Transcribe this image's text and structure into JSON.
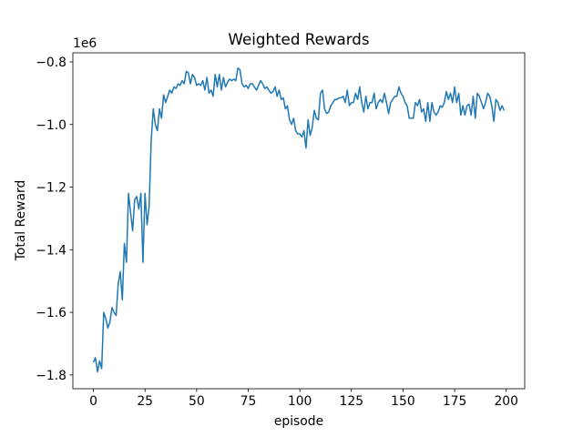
{
  "chart_data": {
    "type": "line",
    "title": "Weighted Rewards",
    "x_label": "episode",
    "y_label": "Total Reward",
    "y_offset_text": "1e6",
    "x": [
      0,
      1,
      2,
      3,
      4,
      5,
      6,
      7,
      8,
      9,
      10,
      11,
      12,
      13,
      14,
      15,
      16,
      17,
      18,
      19,
      20,
      21,
      22,
      23,
      24,
      25,
      26,
      27,
      28,
      29,
      30,
      31,
      32,
      33,
      34,
      35,
      36,
      37,
      38,
      39,
      40,
      41,
      42,
      43,
      44,
      45,
      46,
      47,
      48,
      49,
      50,
      51,
      52,
      53,
      54,
      55,
      56,
      57,
      58,
      59,
      60,
      61,
      62,
      63,
      64,
      65,
      66,
      67,
      68,
      69,
      70,
      71,
      72,
      73,
      74,
      75,
      76,
      77,
      78,
      79,
      80,
      81,
      82,
      83,
      84,
      85,
      86,
      87,
      88,
      89,
      90,
      91,
      92,
      93,
      94,
      95,
      96,
      97,
      98,
      99,
      100,
      101,
      102,
      103,
      104,
      105,
      106,
      107,
      108,
      109,
      110,
      111,
      112,
      113,
      114,
      115,
      116,
      117,
      118,
      119,
      120,
      121,
      122,
      123,
      124,
      125,
      126,
      127,
      128,
      129,
      130,
      131,
      132,
      133,
      134,
      135,
      136,
      137,
      138,
      139,
      140,
      141,
      142,
      143,
      144,
      145,
      146,
      147,
      148,
      149,
      150,
      151,
      152,
      153,
      154,
      155,
      156,
      157,
      158,
      159,
      160,
      161,
      162,
      163,
      164,
      165,
      166,
      167,
      168,
      169,
      170,
      171,
      172,
      173,
      174,
      175,
      176,
      177,
      178,
      179,
      180,
      181,
      182,
      183,
      184,
      185,
      186,
      187,
      188,
      189,
      190,
      191,
      192,
      193,
      194,
      195,
      196,
      197,
      198,
      199
    ],
    "series": [
      {
        "color": "#1f77b4",
        "values": [
          -1.76,
          -1.745,
          -1.79,
          -1.755,
          -1.78,
          -1.6,
          -1.62,
          -1.65,
          -1.63,
          -1.585,
          -1.6,
          -1.61,
          -1.51,
          -1.47,
          -1.56,
          -1.38,
          -1.44,
          -1.22,
          -1.28,
          -1.34,
          -1.24,
          -1.23,
          -1.27,
          -1.22,
          -1.44,
          -1.22,
          -1.32,
          -1.26,
          -1.05,
          -0.95,
          -1.0,
          -1.02,
          -0.95,
          -0.98,
          -0.905,
          -0.93,
          -0.91,
          -0.89,
          -0.9,
          -0.88,
          -0.885,
          -0.87,
          -0.875,
          -0.86,
          -0.87,
          -0.83,
          -0.835,
          -0.87,
          -0.84,
          -0.85,
          -0.875,
          -0.87,
          -0.875,
          -0.86,
          -0.89,
          -0.85,
          -0.9,
          -0.89,
          -0.91,
          -0.84,
          -0.88,
          -0.84,
          -0.89,
          -0.85,
          -0.88,
          -0.865,
          -0.855,
          -0.86,
          -0.855,
          -0.86,
          -0.82,
          -0.825,
          -0.87,
          -0.88,
          -0.875,
          -0.885,
          -0.87,
          -0.87,
          -0.88,
          -0.89,
          -0.875,
          -0.86,
          -0.87,
          -0.885,
          -0.88,
          -0.89,
          -0.9,
          -0.895,
          -0.88,
          -0.91,
          -0.89,
          -0.92,
          -0.915,
          -0.95,
          -0.94,
          -0.985,
          -1.0,
          -0.98,
          -1.02,
          -1.03,
          -1.03,
          -1.04,
          -1.02,
          -1.075,
          -0.985,
          -1.035,
          -1.01,
          -0.955,
          -0.98,
          -0.985,
          -0.9,
          -0.89,
          -0.95,
          -0.965,
          -0.96,
          -0.94,
          -0.93,
          -0.92,
          -0.92,
          -0.915,
          -0.915,
          -0.91,
          -0.93,
          -0.89,
          -0.94,
          -0.93,
          -0.93,
          -0.9,
          -0.92,
          -0.88,
          -0.93,
          -0.96,
          -0.91,
          -0.95,
          -0.93,
          -0.93,
          -0.9,
          -0.95,
          -0.93,
          -0.92,
          -0.93,
          -0.9,
          -0.93,
          -0.965,
          -0.93,
          -0.92,
          -0.91,
          -0.91,
          -0.88,
          -0.9,
          -0.91,
          -0.93,
          -0.94,
          -0.98,
          -0.98,
          -0.98,
          -0.93,
          -0.94,
          -0.92,
          -0.96,
          -0.95,
          -0.99,
          -0.93,
          -0.99,
          -0.93,
          -0.96,
          -0.97,
          -0.96,
          -0.94,
          -0.945,
          -0.93,
          -0.895,
          -0.92,
          -0.9,
          -0.93,
          -0.88,
          -0.93,
          -0.9,
          -0.97,
          -0.94,
          -0.97,
          -0.94,
          -0.935,
          -0.97,
          -0.91,
          -0.98,
          -0.9,
          -0.91,
          -0.93,
          -0.95,
          -0.93,
          -0.9,
          -0.91,
          -0.94,
          -0.99,
          -0.92,
          -0.93,
          -0.955,
          -0.94,
          -0.955
        ]
      }
    ],
    "xlim": [
      -9.95,
      208.95
    ],
    "xticks": [
      0,
      25,
      50,
      75,
      100,
      125,
      150,
      175,
      200
    ],
    "ylim": [
      -1.844,
      -0.771
    ],
    "yticks": [
      {
        "value": -1.8,
        "label": "−1.8"
      },
      {
        "value": -1.6,
        "label": "−1.6"
      },
      {
        "value": -1.4,
        "label": "−1.4"
      },
      {
        "value": -1.2,
        "label": "−1.2"
      },
      {
        "value": -1.0,
        "label": "−1.0"
      },
      {
        "value": -0.8,
        "label": "−0.8"
      }
    ],
    "grid": false
  }
}
